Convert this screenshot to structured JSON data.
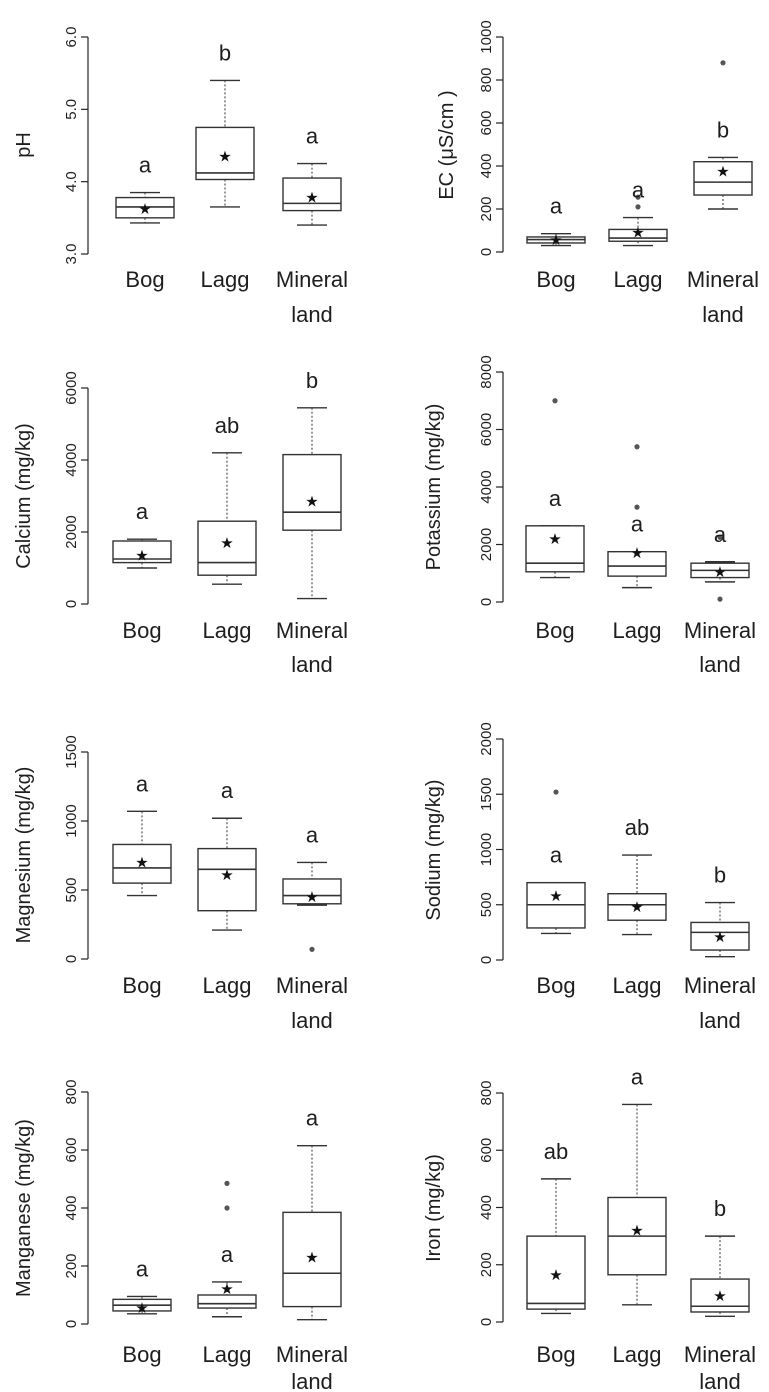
{
  "chart_data": [
    {
      "type": "boxplot",
      "ylabel": "pH",
      "ylim": [
        3.0,
        6.0
      ],
      "yticks": [
        3.0,
        4.0,
        5.0,
        6.0
      ],
      "tick_labels": [
        "3.0",
        "4.0",
        "5.0",
        "6.0"
      ],
      "categories": [
        "Bog",
        "Lagg",
        "Mineral land"
      ],
      "boxes": [
        {
          "q1": 3.5,
          "median": 3.65,
          "q3": 3.78,
          "lower": 3.43,
          "upper": 3.85,
          "mean": 3.62,
          "outliers": [],
          "letter": "a"
        },
        {
          "q1": 4.03,
          "median": 4.12,
          "q3": 4.75,
          "lower": 3.65,
          "upper": 5.4,
          "mean": 4.35,
          "outliers": [],
          "letter": "b"
        },
        {
          "q1": 3.6,
          "median": 3.7,
          "q3": 4.05,
          "lower": 3.4,
          "upper": 4.25,
          "mean": 3.78,
          "outliers": [],
          "letter": "a"
        }
      ]
    },
    {
      "type": "boxplot",
      "ylabel": "EC (μS/cm )",
      "ylim": [
        0,
        1000
      ],
      "yticks": [
        0,
        200,
        400,
        600,
        800,
        1000
      ],
      "tick_labels": [
        "0",
        "200",
        "400",
        "600",
        "800",
        "1000"
      ],
      "categories": [
        "Bog",
        "Lagg",
        "Mineral land"
      ],
      "boxes": [
        {
          "q1": 42,
          "median": 58,
          "q3": 70,
          "lower": 30,
          "upper": 85,
          "mean": 55,
          "outliers": [],
          "letter": "a"
        },
        {
          "q1": 50,
          "median": 65,
          "q3": 105,
          "lower": 30,
          "upper": 160,
          "mean": 90,
          "outliers": [
            210,
            255
          ],
          "letter": "a"
        },
        {
          "q1": 265,
          "median": 325,
          "q3": 420,
          "lower": 200,
          "upper": 440,
          "mean": 375,
          "outliers": [
            880
          ],
          "letter": "b"
        }
      ]
    },
    {
      "type": "boxplot",
      "ylabel": "Calcium  (mg/kg)",
      "ylim": [
        0,
        6000
      ],
      "yticks": [
        0,
        2000,
        4000,
        6000
      ],
      "tick_labels": [
        "0",
        "2000",
        "4000",
        "6000"
      ],
      "categories": [
        "Bog",
        "Lagg",
        "Mineral land"
      ],
      "boxes": [
        {
          "q1": 1150,
          "median": 1250,
          "q3": 1750,
          "lower": 1000,
          "upper": 1800,
          "mean": 1350,
          "outliers": [],
          "letter": "a"
        },
        {
          "q1": 800,
          "median": 1150,
          "q3": 2300,
          "lower": 550,
          "upper": 4200,
          "mean": 1700,
          "outliers": [],
          "letter": "ab"
        },
        {
          "q1": 2050,
          "median": 2550,
          "q3": 4150,
          "lower": 150,
          "upper": 5450,
          "mean": 2850,
          "outliers": [],
          "letter": "b"
        }
      ]
    },
    {
      "type": "boxplot",
      "ylabel": "Potassium  (mg/kg)",
      "ylim": [
        0,
        8000
      ],
      "yticks": [
        0,
        2000,
        4000,
        6000,
        8000
      ],
      "tick_labels": [
        "0",
        "2000",
        "4000",
        "6000",
        "8000"
      ],
      "categories": [
        "Bog",
        "Lagg",
        "Mineral land"
      ],
      "boxes": [
        {
          "q1": 1050,
          "median": 1350,
          "q3": 2650,
          "lower": 850,
          "upper": 2650,
          "mean": 2200,
          "outliers": [
            7000
          ],
          "letter": "a"
        },
        {
          "q1": 900,
          "median": 1250,
          "q3": 1750,
          "lower": 500,
          "upper": 1750,
          "mean": 1700,
          "outliers": [
            3300,
            5400
          ],
          "letter": "a"
        },
        {
          "q1": 850,
          "median": 1100,
          "q3": 1350,
          "lower": 700,
          "upper": 1400,
          "mean": 1050,
          "outliers": [
            2250,
            100
          ],
          "letter": "a"
        }
      ]
    },
    {
      "type": "boxplot",
      "ylabel": "Magnesium (mg/kg)",
      "ylim": [
        0,
        1500
      ],
      "yticks": [
        0,
        500,
        1000,
        1500
      ],
      "tick_labels": [
        "0",
        "500",
        "1000",
        "1500"
      ],
      "categories": [
        "Bog",
        "Lagg",
        "Mineral land"
      ],
      "boxes": [
        {
          "q1": 550,
          "median": 660,
          "q3": 830,
          "lower": 460,
          "upper": 1070,
          "mean": 700,
          "outliers": [],
          "letter": "a"
        },
        {
          "q1": 350,
          "median": 650,
          "q3": 800,
          "lower": 210,
          "upper": 1020,
          "mean": 610,
          "outliers": [],
          "letter": "a"
        },
        {
          "q1": 400,
          "median": 460,
          "q3": 580,
          "lower": 390,
          "upper": 700,
          "mean": 450,
          "outliers": [
            70
          ],
          "letter": "a"
        }
      ]
    },
    {
      "type": "boxplot",
      "ylabel": "Sodium (mg/kg)",
      "ylim": [
        0,
        2000
      ],
      "yticks": [
        0,
        500,
        1000,
        1500,
        2000
      ],
      "tick_labels": [
        "0",
        "500",
        "1000",
        "1500",
        "2000"
      ],
      "categories": [
        "Bog",
        "Lagg",
        "Mineral land"
      ],
      "boxes": [
        {
          "q1": 290,
          "median": 500,
          "q3": 700,
          "lower": 240,
          "upper": 700,
          "mean": 580,
          "outliers": [
            1520
          ],
          "letter": "a"
        },
        {
          "q1": 360,
          "median": 500,
          "q3": 600,
          "lower": 230,
          "upper": 950,
          "mean": 480,
          "outliers": [],
          "letter": "ab"
        },
        {
          "q1": 90,
          "median": 250,
          "q3": 340,
          "lower": 30,
          "upper": 520,
          "mean": 210,
          "outliers": [],
          "letter": "b"
        }
      ]
    },
    {
      "type": "boxplot",
      "ylabel": "Manganese (mg/kg)",
      "ylim": [
        0,
        800
      ],
      "yticks": [
        0,
        200,
        400,
        600,
        800
      ],
      "tick_labels": [
        "0",
        "200",
        "400",
        "600",
        "800"
      ],
      "categories": [
        "Bog",
        "Lagg",
        "Mineral land"
      ],
      "boxes": [
        {
          "q1": 45,
          "median": 65,
          "q3": 85,
          "lower": 35,
          "upper": 95,
          "mean": 55,
          "outliers": [],
          "letter": "a"
        },
        {
          "q1": 55,
          "median": 70,
          "q3": 100,
          "lower": 25,
          "upper": 145,
          "mean": 120,
          "outliers": [
            400,
            485
          ],
          "letter": "a"
        },
        {
          "q1": 60,
          "median": 175,
          "q3": 385,
          "lower": 15,
          "upper": 615,
          "mean": 230,
          "outliers": [],
          "letter": "a"
        }
      ]
    },
    {
      "type": "boxplot",
      "ylabel": "Iron  (mg/kg)",
      "ylim": [
        0,
        800
      ],
      "yticks": [
        0,
        200,
        400,
        600,
        800
      ],
      "tick_labels": [
        "0",
        "200",
        "400",
        "600",
        "800"
      ],
      "categories": [
        "Bog",
        "Lagg",
        "Mineral land"
      ],
      "boxes": [
        {
          "q1": 45,
          "median": 65,
          "q3": 300,
          "lower": 30,
          "upper": 500,
          "mean": 165,
          "outliers": [],
          "letter": "ab"
        },
        {
          "q1": 165,
          "median": 300,
          "q3": 435,
          "lower": 60,
          "upper": 760,
          "mean": 320,
          "outliers": [],
          "letter": "a"
        },
        {
          "q1": 35,
          "median": 55,
          "q3": 150,
          "lower": 20,
          "upper": 300,
          "mean": 90,
          "outliers": [],
          "letter": "b"
        }
      ]
    }
  ]
}
